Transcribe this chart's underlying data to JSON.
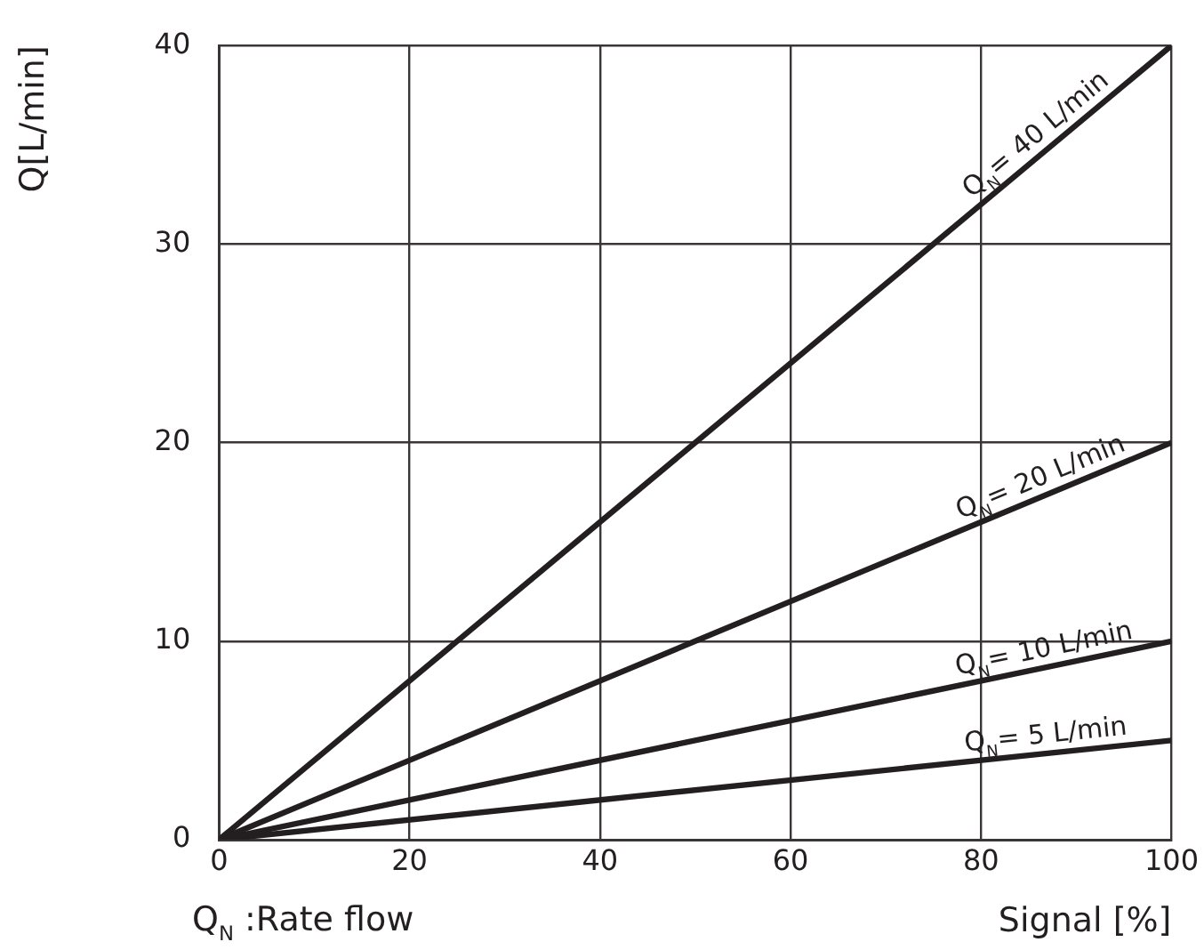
{
  "chart_data": {
    "type": "line",
    "xlabel": "Signal [%]",
    "ylabel": "Q[L/min]",
    "x": [
      0,
      100
    ],
    "xlim": [
      0,
      100
    ],
    "xticks": [
      0,
      20,
      40,
      60,
      80,
      100
    ],
    "ylim": [
      0,
      40
    ],
    "yticks": [
      0,
      10,
      20,
      30,
      40
    ],
    "grid": true,
    "legend": false,
    "marker": "none",
    "line_style": "solid",
    "series": [
      {
        "name": "Q$_{N}$= 40 L/min",
        "color": "#231f20",
        "values": [
          0,
          40
        ]
      },
      {
        "name": "Q$_{N}$= 20 L/min",
        "color": "#231f20",
        "values": [
          0,
          20
        ]
      },
      {
        "name": "Q$_{N}$= 10 L/min",
        "color": "#231f20",
        "values": [
          0,
          10
        ]
      },
      {
        "name": "Q$_{N}$= 5 L/min",
        "color": "#231f20",
        "values": [
          0,
          5
        ]
      }
    ],
    "annotations": [
      "Q$_{N}$ :Rate flow"
    ]
  }
}
